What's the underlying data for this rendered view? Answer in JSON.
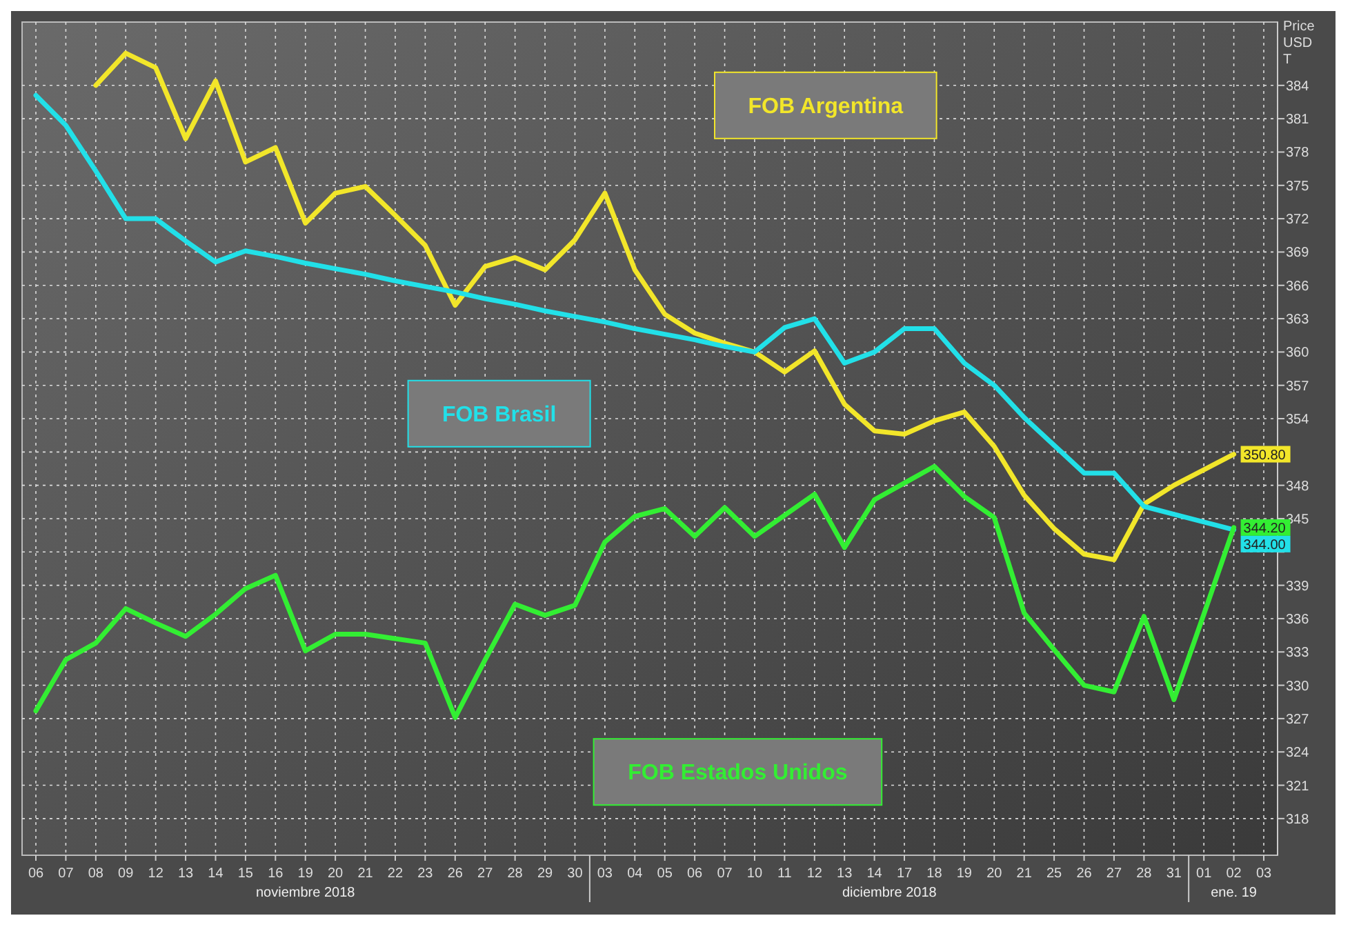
{
  "chart_data": {
    "type": "line",
    "ylabel": "Price USD T",
    "categories": [
      "06",
      "07",
      "08",
      "09",
      "12",
      "13",
      "14",
      "15",
      "16",
      "19",
      "20",
      "21",
      "22",
      "23",
      "26",
      "27",
      "28",
      "29",
      "30",
      "03",
      "04",
      "05",
      "06",
      "07",
      "10",
      "11",
      "12",
      "13",
      "14",
      "17",
      "18",
      "19",
      "20",
      "21",
      "25",
      "26",
      "27",
      "28",
      "31",
      "01",
      "02",
      "03"
    ],
    "series": [
      {
        "name": "FOB Argentina",
        "color": "#f2e62a",
        "values": [
          null,
          null,
          384,
          386.9,
          385.6,
          379.2,
          384.4,
          377.1,
          378.4,
          371.6,
          374.3,
          374.9,
          372.3,
          369.6,
          364.2,
          367.7,
          368.5,
          367.4,
          370.1,
          374.3,
          367.4,
          363.4,
          361.7,
          360.8,
          360,
          358.2,
          360.1,
          355.3,
          352.9,
          352.6,
          353.8,
          354.6,
          351.5,
          347.1,
          344.1,
          341.8,
          341.3,
          346.3,
          348,
          349.4,
          350.8,
          null
        ],
        "value_labels": [
          null,
          null,
          null,
          null,
          null,
          null,
          null,
          null,
          null,
          null,
          null,
          null,
          null,
          null,
          null,
          null,
          null,
          null,
          null,
          null,
          null,
          null,
          null,
          null,
          null,
          null,
          null,
          null,
          null,
          null,
          null,
          null,
          null,
          null,
          null,
          null,
          null,
          null,
          null,
          null,
          "350.80",
          null
        ]
      },
      {
        "name": "FOB Brasil",
        "color": "#22e0e8",
        "values": [
          383.1,
          380.4,
          376.3,
          372,
          372,
          370,
          368.1,
          369.1,
          368.6,
          368,
          367.5,
          367,
          366.4,
          365.9,
          365.4,
          364.8,
          364.3,
          363.7,
          363.2,
          362.7,
          362.1,
          361.6,
          361.1,
          360.5,
          360,
          362.2,
          363,
          359,
          360,
          362.1,
          362.1,
          359,
          357,
          354.1,
          351.6,
          349.1,
          349.1,
          346.1,
          345.4,
          344.7,
          344,
          null
        ],
        "value_labels": [
          null,
          null,
          null,
          null,
          null,
          null,
          null,
          null,
          null,
          null,
          null,
          null,
          null,
          null,
          null,
          null,
          null,
          null,
          null,
          null,
          null,
          null,
          null,
          null,
          null,
          null,
          null,
          null,
          null,
          null,
          null,
          null,
          null,
          null,
          null,
          null,
          null,
          null,
          null,
          null,
          "344.00",
          null
        ]
      },
      {
        "name": "FOB Estados Unidos",
        "color": "#33ee33",
        "values": [
          327.7,
          332.3,
          333.8,
          336.9,
          335.6,
          334.4,
          336.4,
          338.7,
          339.9,
          333.1,
          334.6,
          334.6,
          334.2,
          333.8,
          327.1,
          332.3,
          337.3,
          336.3,
          337.2,
          342.9,
          345.2,
          345.9,
          343.4,
          346,
          343.4,
          345.3,
          347.2,
          342.4,
          346.7,
          348.2,
          349.7,
          347,
          345.1,
          336.5,
          333.2,
          330,
          329.4,
          336.2,
          328.7,
          336.4,
          344.2,
          null
        ],
        "value_labels": [
          null,
          null,
          null,
          null,
          null,
          null,
          null,
          null,
          null,
          null,
          null,
          null,
          null,
          null,
          null,
          null,
          null,
          null,
          null,
          null,
          null,
          null,
          null,
          null,
          null,
          null,
          null,
          null,
          null,
          null,
          null,
          null,
          null,
          null,
          null,
          null,
          null,
          null,
          null,
          null,
          "344.20",
          null
        ]
      }
    ],
    "ylim": [
      314.7,
      389.7
    ],
    "yticks": [
      318,
      321,
      324,
      327,
      330,
      333,
      336,
      339,
      {
        "value": 342,
        "label": null
      },
      345,
      348,
      {
        "value": 351,
        "label": null
      },
      354,
      357,
      360,
      363,
      366,
      369,
      372,
      375,
      378,
      381,
      384
    ],
    "grid": true,
    "annotations": [
      "noviembre 2018",
      "diciembre 2018",
      "ene. 19"
    ]
  }
}
